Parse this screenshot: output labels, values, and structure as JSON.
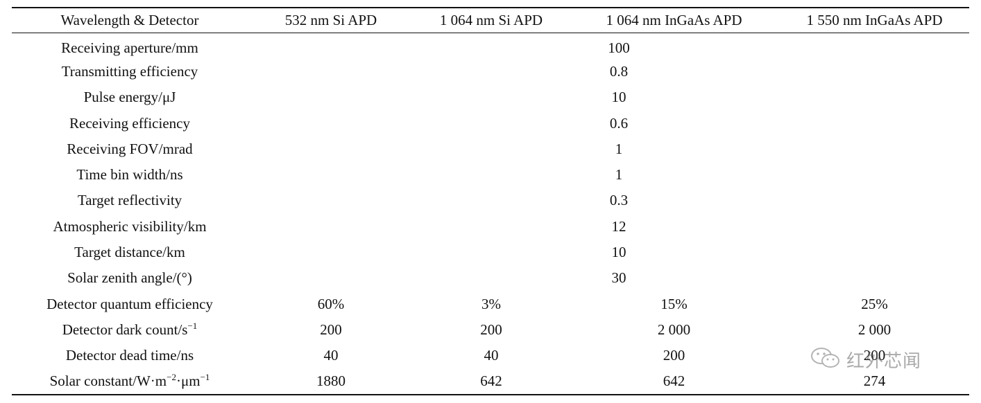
{
  "table": {
    "headers": [
      "Wavelength & Detector",
      "532 nm Si APD",
      "1 064 nm Si APD",
      "1 064 nm InGaAs APD",
      "1 550 nm InGaAs APD"
    ],
    "shared_rows": [
      {
        "param": "Receiving aperture/mm",
        "value": "100"
      },
      {
        "param": "Transmitting efficiency",
        "value": "0.8"
      },
      {
        "param": "Pulse energy/μJ",
        "value": "10"
      },
      {
        "param": "Receiving efficiency",
        "value": "0.6"
      },
      {
        "param": "Receiving FOV/mrad",
        "value": "1"
      },
      {
        "param": "Time bin width/ns",
        "value": "1"
      },
      {
        "param": "Target reflectivity",
        "value": "0.3"
      },
      {
        "param": "Atmospheric visibility/km",
        "value": "12"
      },
      {
        "param": "Target distance/km",
        "value": "10"
      },
      {
        "param": "Solar zenith angle/(°)",
        "value": "30"
      }
    ],
    "detector_rows": [
      {
        "param": "Detector quantum efficiency",
        "param_sup": "",
        "values": [
          "60%",
          "3%",
          "15%",
          "25%"
        ]
      },
      {
        "param": "Detector dark count/s",
        "param_sup": "−1",
        "values": [
          "200",
          "200",
          "2 000",
          "2 000"
        ]
      },
      {
        "param": "Detector dead time/ns",
        "param_sup": "",
        "values": [
          "40",
          "40",
          "200",
          "200"
        ]
      },
      {
        "param": "Solar constant/W·m",
        "param_sup": "−2",
        "param_mid": "·μm",
        "param_sup2": "−1",
        "values": [
          "1880",
          "642",
          "642",
          "274"
        ]
      }
    ]
  },
  "watermark": {
    "icon": "wechat-icon",
    "text": "红外芯闻"
  }
}
